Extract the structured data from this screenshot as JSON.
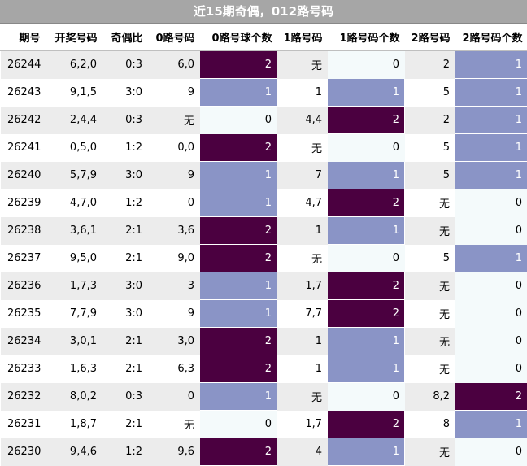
{
  "title": "近15期奇偶，012路号码",
  "columns": [
    "期号",
    "开奖号码",
    "奇偶比",
    "0路号码",
    "0路号球个数",
    "1路号码",
    "1路号码个数",
    "2路号码",
    "2路号码个数"
  ],
  "colors": {
    "count_2": "#4b0040",
    "count_1": "#8a94c6",
    "count_0": "#f4fafb",
    "title_bg": "#a6a6a6"
  },
  "chart_data": {
    "type": "table",
    "title": "近15期奇偶，012路号码",
    "columns": [
      "期号",
      "开奖号码",
      "奇偶比",
      "0路号码",
      "0路号球个数",
      "1路号码",
      "1路号码个数",
      "2路号码",
      "2路号码个数"
    ],
    "rows": [
      [
        "26244",
        "6,2,0",
        "0:3",
        "6,0",
        "2",
        "无",
        "0",
        "2",
        "1"
      ],
      [
        "26243",
        "9,1,5",
        "3:0",
        "9",
        "1",
        "1",
        "1",
        "5",
        "1"
      ],
      [
        "26242",
        "2,4,4",
        "0:3",
        "无",
        "0",
        "4,4",
        "2",
        "2",
        "1"
      ],
      [
        "26241",
        "0,5,0",
        "1:2",
        "0,0",
        "2",
        "无",
        "0",
        "5",
        "1"
      ],
      [
        "26240",
        "5,7,9",
        "3:0",
        "9",
        "1",
        "7",
        "1",
        "5",
        "1"
      ],
      [
        "26239",
        "4,7,0",
        "1:2",
        "0",
        "1",
        "4,7",
        "2",
        "无",
        "0"
      ],
      [
        "26238",
        "3,6,1",
        "2:1",
        "3,6",
        "2",
        "1",
        "1",
        "无",
        "0"
      ],
      [
        "26237",
        "9,5,0",
        "2:1",
        "9,0",
        "2",
        "无",
        "0",
        "5",
        "1"
      ],
      [
        "26236",
        "1,7,3",
        "3:0",
        "3",
        "1",
        "1,7",
        "2",
        "无",
        "0"
      ],
      [
        "26235",
        "7,7,9",
        "3:0",
        "9",
        "1",
        "7,7",
        "2",
        "无",
        "0"
      ],
      [
        "26234",
        "3,0,1",
        "2:1",
        "3,0",
        "2",
        "1",
        "1",
        "无",
        "0"
      ],
      [
        "26233",
        "1,6,3",
        "2:1",
        "6,3",
        "2",
        "1",
        "1",
        "无",
        "0"
      ],
      [
        "26232",
        "8,0,2",
        "0:3",
        "0",
        "1",
        "无",
        "0",
        "8,2",
        "2"
      ],
      [
        "26231",
        "1,8,7",
        "2:1",
        "无",
        "0",
        "1,7",
        "2",
        "8",
        "1"
      ],
      [
        "26230",
        "9,4,6",
        "1:2",
        "9,6",
        "2",
        "4",
        "1",
        "无",
        "0"
      ]
    ]
  }
}
